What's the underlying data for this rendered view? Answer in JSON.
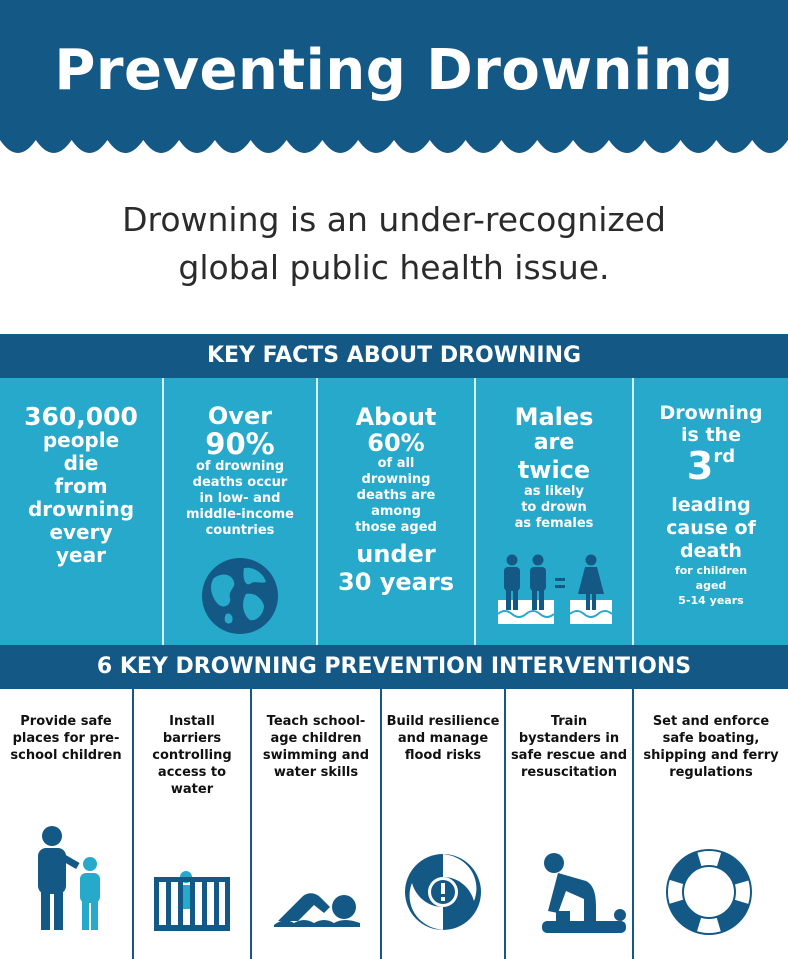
{
  "header": {
    "title": "Preventing Drowning"
  },
  "subtitle": {
    "line1": "Drowning is an under-recognized",
    "line2": "global public health issue."
  },
  "key_facts": {
    "heading": "KEY FACTS ABOUT DROWNING",
    "fact1": {
      "l1": "360,000",
      "l2": "people",
      "l3": "die",
      "l4": "from",
      "l5": "drowning",
      "l6": "every",
      "l7": "year"
    },
    "fact2": {
      "l1": "Over",
      "l2": "90%",
      "l3": "of drowning",
      "l4": "deaths occur",
      "l5": "in low- and",
      "l6": "middle-income",
      "l7": "countries"
    },
    "fact3": {
      "l1": "About",
      "l2": "60%",
      "l3": "of all",
      "l4": "drowning",
      "l5": "deaths are",
      "l6": "among",
      "l7": "those aged",
      "l8": "under",
      "l9": "30 years"
    },
    "fact4": {
      "l1": "Males",
      "l2": "are",
      "l3": "twice",
      "l4": "as likely",
      "l5": "to drown",
      "l6": "as females"
    },
    "fact5": {
      "l1": "Drowning",
      "l2": "is the",
      "l3": "3",
      "l3sup": "rd",
      "l4": "leading",
      "l5": "cause of",
      "l6": "death",
      "l7": "for children",
      "l8": "aged",
      "l9": "5-14 years"
    }
  },
  "interventions": {
    "heading": "6 KEY DROWNING PREVENTION INTERVENTIONS",
    "items": [
      {
        "label": "Provide safe places for pre-school children",
        "icon": "adult-child-icon"
      },
      {
        "label": "Install barriers controlling access to water",
        "icon": "barrier-icon"
      },
      {
        "label": "Teach school-age children swimming and water skills",
        "icon": "swimmer-icon"
      },
      {
        "label": "Build resilience and manage flood risks",
        "icon": "flood-swirl-icon"
      },
      {
        "label": "Train bystanders in safe rescue and resuscitation",
        "icon": "cpr-icon"
      },
      {
        "label": "Set and enforce safe boating, shipping and ferry regulations",
        "icon": "life-ring-icon"
      }
    ]
  },
  "colors": {
    "dark_blue": "#145986",
    "light_blue": "#27a9cb",
    "icon_teal": "#27a9cb"
  }
}
